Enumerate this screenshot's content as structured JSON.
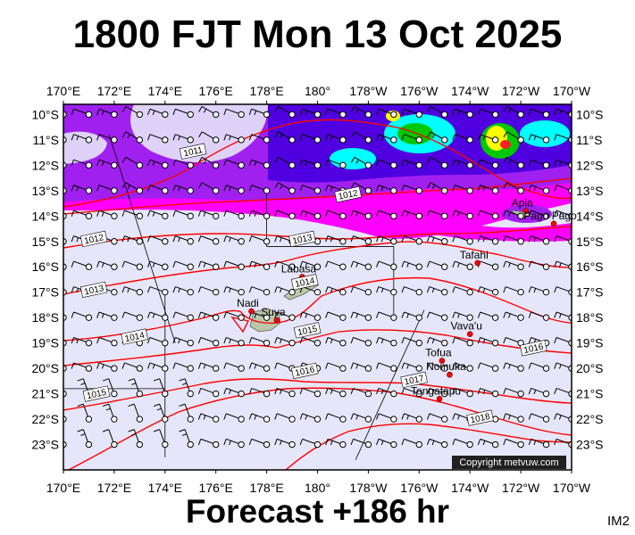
{
  "header": {
    "title": "1800 FJT Mon 13 Oct 2025"
  },
  "footer": {
    "forecast": "Forecast +186 hr",
    "tag": "IM2"
  },
  "map": {
    "copyright": "Copyright metvuw.com",
    "lon_labels": [
      "170°E",
      "172°E",
      "174°E",
      "176°E",
      "178°E",
      "180°",
      "178°W",
      "176°W",
      "174°W",
      "172°W",
      "170°W"
    ],
    "lat_labels": [
      "10°S",
      "11°S",
      "12°S",
      "13°S",
      "14°S",
      "15°S",
      "16°S",
      "17°S",
      "18°S",
      "19°S",
      "20°S",
      "21°S",
      "22°S",
      "23°S"
    ],
    "places": [
      {
        "name": "Apia",
        "lon": -171.8,
        "lat": -13.8
      },
      {
        "name": "Pago Pago",
        "lon": -170.7,
        "lat": -14.3
      },
      {
        "name": "Tafahi",
        "lon": -173.7,
        "lat": -15.85
      },
      {
        "name": "Labasa",
        "lon": 179.4,
        "lat": -16.4
      },
      {
        "name": "Nadi",
        "lon": 177.4,
        "lat": -17.75
      },
      {
        "name": "Suva",
        "lon": 178.4,
        "lat": -18.1
      },
      {
        "name": "Vava'u",
        "lon": -174.0,
        "lat": -18.65
      },
      {
        "name": "Tofua",
        "lon": -175.1,
        "lat": -19.7
      },
      {
        "name": "Nomuka",
        "lon": -174.8,
        "lat": -20.25
      },
      {
        "name": "Tongatapu",
        "lon": -175.2,
        "lat": -21.2
      }
    ],
    "isobars": [
      {
        "label": "1011",
        "lon": 175.1,
        "lat": -11.45
      },
      {
        "label": "1012",
        "lon": -178.8,
        "lat": -13.15
      },
      {
        "label": "1012",
        "lon": 171.2,
        "lat": -14.9
      },
      {
        "label": "1013",
        "lon": 179.4,
        "lat": -14.9
      },
      {
        "label": "1013",
        "lon": 171.2,
        "lat": -16.9
      },
      {
        "label": "1014",
        "lon": 179.5,
        "lat": -16.6
      },
      {
        "label": "1014",
        "lon": 172.8,
        "lat": -18.75
      },
      {
        "label": "1015",
        "lon": 179.6,
        "lat": -18.5
      },
      {
        "label": "1016",
        "lon": 179.5,
        "lat": -20.1
      },
      {
        "label": "1016",
        "lon": -171.5,
        "lat": -19.2
      },
      {
        "label": "1017",
        "lon": -176.2,
        "lat": -20.45
      },
      {
        "label": "1015",
        "lon": 171.3,
        "lat": -21.0
      },
      {
        "label": "1018",
        "lon": -173.6,
        "lat": -21.95
      }
    ],
    "colors": {
      "background": "#e6e6fa",
      "isobar": "#ff0000",
      "rain_light": "#ff00ff",
      "rain_mid": "#a020f0",
      "rain_heavy": "#5000e0",
      "rain_cyan": "#00ffff",
      "rain_green": "#00c800",
      "rain_yellow": "#ffff00"
    }
  }
}
